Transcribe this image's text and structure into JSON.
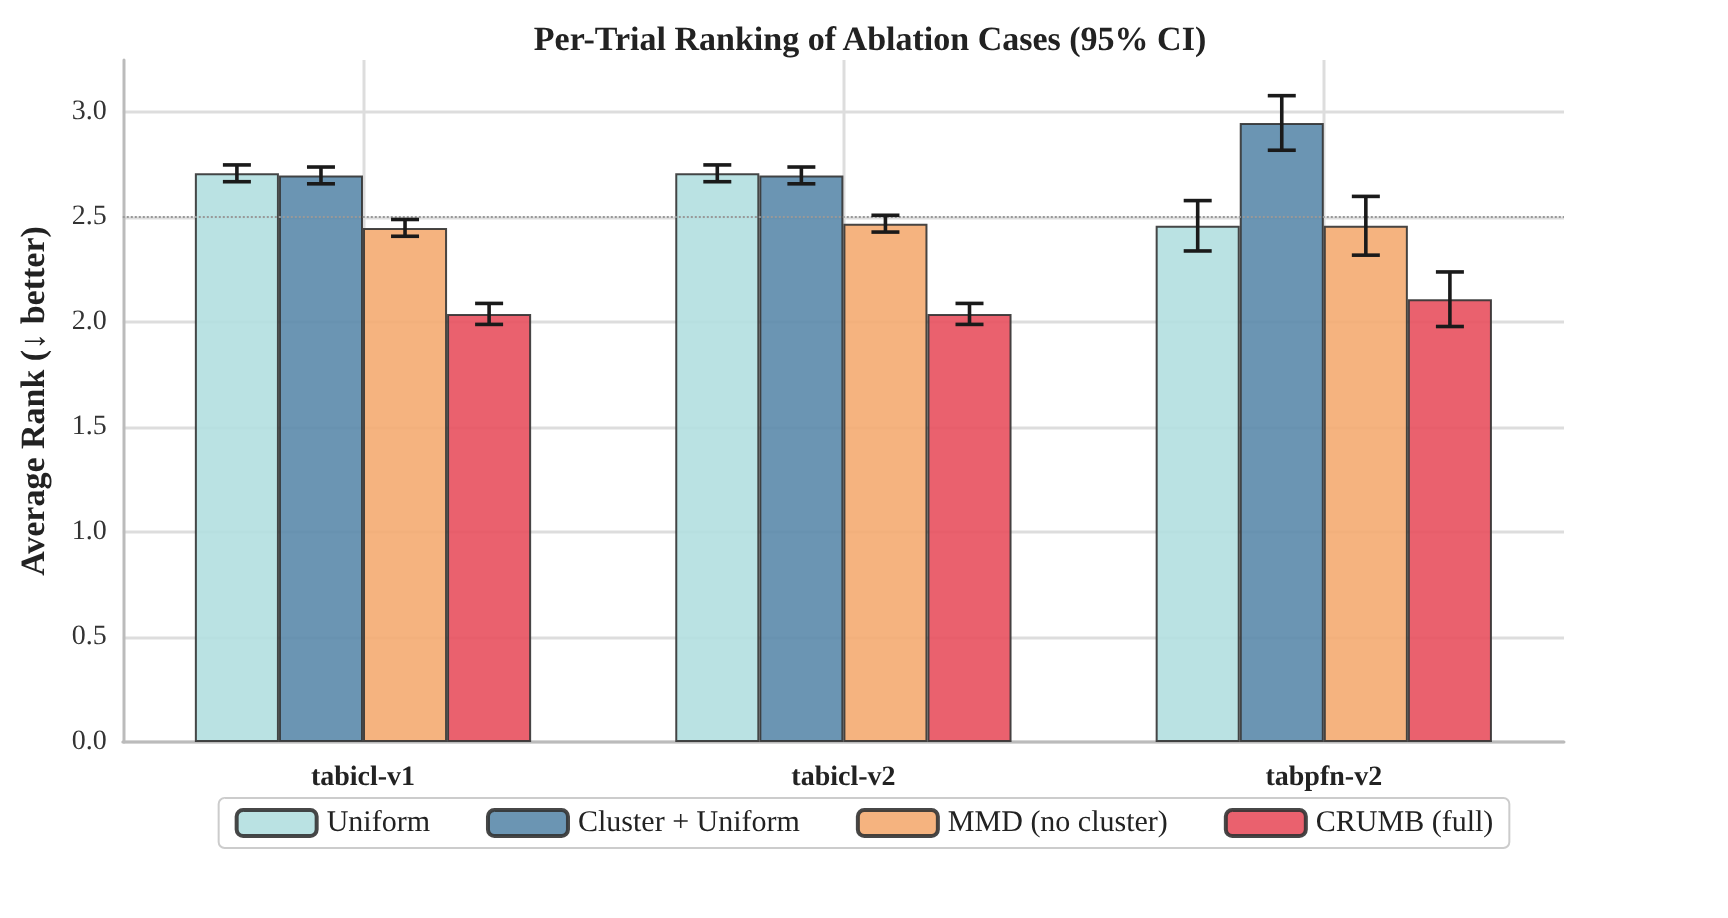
{
  "chart_data": {
    "type": "bar",
    "title": "Per-Trial Ranking of Ablation Cases (95% CI)",
    "ylabel": "Average Rank (↓ better)",
    "categories": [
      "tabicl-v1",
      "tabicl-v2",
      "tabpfn-v2"
    ],
    "series": [
      {
        "name": "Uniform",
        "color": "#b3dfe0",
        "values": [
          2.71,
          2.71,
          2.46
        ],
        "errors": [
          0.04,
          0.04,
          0.12
        ]
      },
      {
        "name": "Cluster + Uniform",
        "color": "#5b8aab",
        "values": [
          2.7,
          2.7,
          2.95
        ],
        "errors": [
          0.04,
          0.04,
          0.13
        ]
      },
      {
        "name": "MMD (no cluster)",
        "color": "#f4ab71",
        "values": [
          2.45,
          2.47,
          2.46
        ],
        "errors": [
          0.04,
          0.04,
          0.14
        ]
      },
      {
        "name": "CRUMB (full)",
        "color": "#e8505e",
        "values": [
          2.04,
          2.04,
          2.11
        ],
        "errors": [
          0.05,
          0.05,
          0.13
        ]
      }
    ],
    "ylim": [
      0,
      3.25
    ],
    "yticks": [
      {
        "value": 0,
        "label": "0.0"
      },
      0.5,
      {
        "value": 1,
        "label": "1.0"
      },
      1.5,
      {
        "value": 2,
        "label": "2.0"
      },
      2.5,
      {
        "value": 3,
        "label": "3.0"
      }
    ],
    "ref_lines": [
      {
        "axis": "y",
        "value": 2.5,
        "color": "#999999",
        "line_style": "dotted"
      }
    ],
    "grid": true,
    "legend": "bottom"
  }
}
